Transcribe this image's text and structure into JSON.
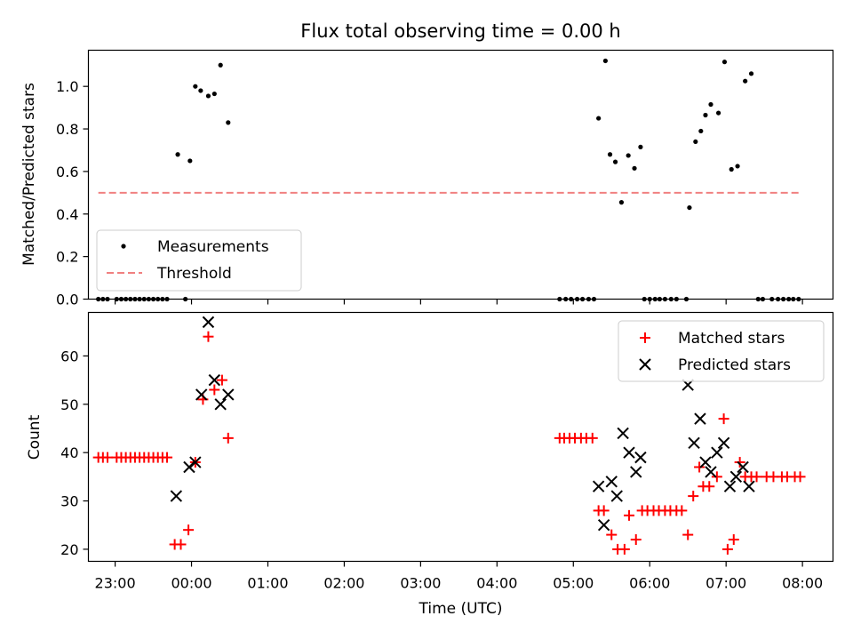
{
  "chart_data": [
    {
      "type": "scatter",
      "title": "Flux total observing time = 0.00 h",
      "xlabel": "",
      "ylabel": "Matched/Predicted stars",
      "xlim": [
        22.65,
        32.4
      ],
      "ylim": [
        0,
        1.17
      ],
      "xticks": [
        {
          "value": 23,
          "label": "23:00"
        },
        {
          "value": 24,
          "label": "00:00"
        },
        {
          "value": 25,
          "label": "01:00"
        },
        {
          "value": 26,
          "label": "02:00"
        },
        {
          "value": 27,
          "label": "03:00"
        },
        {
          "value": 28,
          "label": "04:00"
        },
        {
          "value": 29,
          "label": "05:00"
        },
        {
          "value": 30,
          "label": "06:00"
        },
        {
          "value": 31,
          "label": "07:00"
        },
        {
          "value": 32,
          "label": "08:00"
        }
      ],
      "yticks": [
        {
          "value": 0.0,
          "label": "0.0"
        },
        {
          "value": 0.2,
          "label": "0.2"
        },
        {
          "value": 0.4,
          "label": "0.4"
        },
        {
          "value": 0.6,
          "label": "0.6"
        },
        {
          "value": 0.8,
          "label": "0.8"
        },
        {
          "value": 1.0,
          "label": "1.0"
        }
      ],
      "legend_position": "lower-left",
      "series": [
        {
          "name": "Measurements",
          "marker": "dot",
          "color": "#000000",
          "points": [
            [
              22.78,
              0
            ],
            [
              22.84,
              0
            ],
            [
              22.9,
              0
            ],
            [
              23.02,
              0
            ],
            [
              23.08,
              0
            ],
            [
              23.14,
              0
            ],
            [
              23.2,
              0
            ],
            [
              23.26,
              0
            ],
            [
              23.32,
              0
            ],
            [
              23.38,
              0
            ],
            [
              23.44,
              0
            ],
            [
              23.5,
              0
            ],
            [
              23.56,
              0
            ],
            [
              23.62,
              0
            ],
            [
              23.68,
              0
            ],
            [
              23.92,
              0
            ],
            [
              23.82,
              0.68
            ],
            [
              23.98,
              0.65
            ],
            [
              24.05,
              1.0
            ],
            [
              24.12,
              0.98
            ],
            [
              24.22,
              0.955
            ],
            [
              24.3,
              0.965
            ],
            [
              24.38,
              1.1
            ],
            [
              24.48,
              0.83
            ],
            [
              28.82,
              0
            ],
            [
              28.9,
              0
            ],
            [
              28.97,
              0
            ],
            [
              29.05,
              0
            ],
            [
              29.12,
              0
            ],
            [
              29.2,
              0
            ],
            [
              29.27,
              0
            ],
            [
              29.33,
              0.85
            ],
            [
              29.42,
              1.12
            ],
            [
              29.48,
              0.68
            ],
            [
              29.55,
              0.645
            ],
            [
              29.63,
              0.455
            ],
            [
              29.72,
              0.675
            ],
            [
              29.8,
              0.615
            ],
            [
              29.88,
              0.715
            ],
            [
              29.93,
              0
            ],
            [
              30.0,
              0
            ],
            [
              30.07,
              0
            ],
            [
              30.13,
              0
            ],
            [
              30.2,
              0
            ],
            [
              30.28,
              0
            ],
            [
              30.35,
              0
            ],
            [
              30.48,
              0
            ],
            [
              30.52,
              0.43
            ],
            [
              30.6,
              0.74
            ],
            [
              30.67,
              0.79
            ],
            [
              30.73,
              0.865
            ],
            [
              30.8,
              0.915
            ],
            [
              30.9,
              0.875
            ],
            [
              30.98,
              1.115
            ],
            [
              31.07,
              0.61
            ],
            [
              31.15,
              0.625
            ],
            [
              31.25,
              1.025
            ],
            [
              31.33,
              1.06
            ],
            [
              31.42,
              0
            ],
            [
              31.48,
              0
            ],
            [
              31.6,
              0
            ],
            [
              31.68,
              0
            ],
            [
              31.75,
              0
            ],
            [
              31.82,
              0
            ],
            [
              31.88,
              0
            ],
            [
              31.95,
              0
            ]
          ]
        },
        {
          "name": "Threshold",
          "style": "dashed",
          "color": "#f08080",
          "x": [
            22.78,
            31.95
          ],
          "y": [
            0.5,
            0.5
          ]
        }
      ]
    },
    {
      "type": "scatter",
      "title": "",
      "xlabel": "Time (UTC)",
      "ylabel": "Count",
      "xlim": [
        22.65,
        32.4
      ],
      "ylim": [
        17.5,
        69
      ],
      "xticks": [
        {
          "value": 23,
          "label": "23:00"
        },
        {
          "value": 24,
          "label": "00:00"
        },
        {
          "value": 25,
          "label": "01:00"
        },
        {
          "value": 26,
          "label": "02:00"
        },
        {
          "value": 27,
          "label": "03:00"
        },
        {
          "value": 28,
          "label": "04:00"
        },
        {
          "value": 29,
          "label": "05:00"
        },
        {
          "value": 30,
          "label": "06:00"
        },
        {
          "value": 31,
          "label": "07:00"
        },
        {
          "value": 32,
          "label": "08:00"
        }
      ],
      "yticks": [
        {
          "value": 20,
          "label": "20"
        },
        {
          "value": 30,
          "label": "30"
        },
        {
          "value": 40,
          "label": "40"
        },
        {
          "value": 50,
          "label": "50"
        },
        {
          "value": 60,
          "label": "60"
        }
      ],
      "legend_position": "upper-right",
      "series": [
        {
          "name": "Matched stars",
          "marker": "plus",
          "color": "#ff0000",
          "points": [
            [
              22.78,
              39
            ],
            [
              22.84,
              39
            ],
            [
              22.9,
              39
            ],
            [
              23.02,
              39
            ],
            [
              23.08,
              39
            ],
            [
              23.14,
              39
            ],
            [
              23.2,
              39
            ],
            [
              23.26,
              39
            ],
            [
              23.32,
              39
            ],
            [
              23.38,
              39
            ],
            [
              23.44,
              39
            ],
            [
              23.5,
              39
            ],
            [
              23.56,
              39
            ],
            [
              23.62,
              39
            ],
            [
              23.68,
              39
            ],
            [
              23.78,
              21
            ],
            [
              23.86,
              21
            ],
            [
              23.96,
              24
            ],
            [
              24.05,
              38
            ],
            [
              24.15,
              51
            ],
            [
              24.22,
              64
            ],
            [
              24.3,
              53
            ],
            [
              24.4,
              55
            ],
            [
              24.48,
              43
            ],
            [
              28.82,
              43
            ],
            [
              28.88,
              43
            ],
            [
              28.95,
              43
            ],
            [
              29.02,
              43
            ],
            [
              29.1,
              43
            ],
            [
              29.17,
              43
            ],
            [
              29.25,
              43
            ],
            [
              29.33,
              28
            ],
            [
              29.4,
              28
            ],
            [
              29.5,
              23
            ],
            [
              29.58,
              20
            ],
            [
              29.67,
              20
            ],
            [
              29.73,
              27
            ],
            [
              29.82,
              22
            ],
            [
              29.9,
              28
            ],
            [
              29.97,
              28
            ],
            [
              30.05,
              28
            ],
            [
              30.12,
              28
            ],
            [
              30.2,
              28
            ],
            [
              30.27,
              28
            ],
            [
              30.35,
              28
            ],
            [
              30.42,
              28
            ],
            [
              30.5,
              23
            ],
            [
              30.57,
              31
            ],
            [
              30.65,
              37
            ],
            [
              30.7,
              33
            ],
            [
              30.78,
              33
            ],
            [
              30.88,
              35
            ],
            [
              30.97,
              47
            ],
            [
              31.02,
              20
            ],
            [
              31.1,
              22
            ],
            [
              31.18,
              38
            ],
            [
              31.25,
              35
            ],
            [
              31.33,
              35
            ],
            [
              31.4,
              35
            ],
            [
              31.53,
              35
            ],
            [
              31.62,
              35
            ],
            [
              31.73,
              35
            ],
            [
              31.8,
              35
            ],
            [
              31.9,
              35
            ],
            [
              31.97,
              35
            ]
          ]
        },
        {
          "name": "Predicted stars",
          "marker": "x",
          "color": "#000000",
          "points": [
            [
              23.8,
              31
            ],
            [
              23.97,
              37
            ],
            [
              24.05,
              38
            ],
            [
              24.13,
              52
            ],
            [
              24.22,
              67
            ],
            [
              24.3,
              55
            ],
            [
              24.38,
              50
            ],
            [
              24.48,
              52
            ],
            [
              29.33,
              33
            ],
            [
              29.4,
              25
            ],
            [
              29.5,
              34
            ],
            [
              29.57,
              31
            ],
            [
              29.65,
              44
            ],
            [
              29.73,
              40
            ],
            [
              29.82,
              36
            ],
            [
              29.88,
              39
            ],
            [
              30.5,
              54
            ],
            [
              30.58,
              42
            ],
            [
              30.66,
              47
            ],
            [
              30.73,
              38
            ],
            [
              30.8,
              36
            ],
            [
              30.88,
              40
            ],
            [
              30.97,
              42
            ],
            [
              31.05,
              33
            ],
            [
              31.13,
              35
            ],
            [
              31.22,
              37
            ],
            [
              31.3,
              33
            ]
          ]
        }
      ]
    }
  ]
}
